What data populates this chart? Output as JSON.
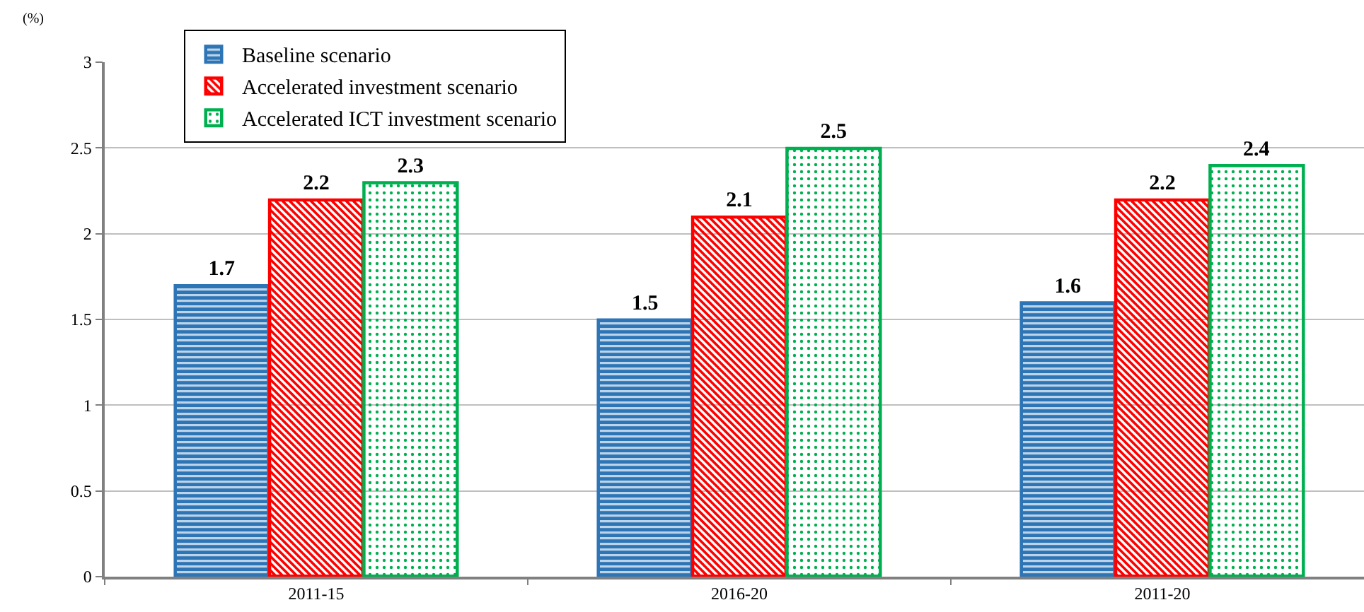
{
  "chart_data": {
    "type": "bar",
    "ylabel": "(%)",
    "categories": [
      "2011-15",
      "2016-20",
      "2011-20"
    ],
    "series": [
      {
        "name": "Baseline scenario",
        "color": "#2e75b6",
        "values": [
          1.7,
          1.5,
          1.6
        ]
      },
      {
        "name": "Accelerated investment scenario",
        "color": "#ff0000",
        "values": [
          2.2,
          2.1,
          2.2
        ]
      },
      {
        "name": "Accelerated ICT investment scenario",
        "color": "#00b050",
        "values": [
          2.3,
          2.5,
          2.4
        ]
      }
    ],
    "ylim": [
      0,
      3
    ],
    "yticks": [
      0,
      0.5,
      1,
      1.5,
      2,
      2.5,
      3
    ],
    "grid": "y",
    "legend": "top left",
    "data_labels": true
  }
}
